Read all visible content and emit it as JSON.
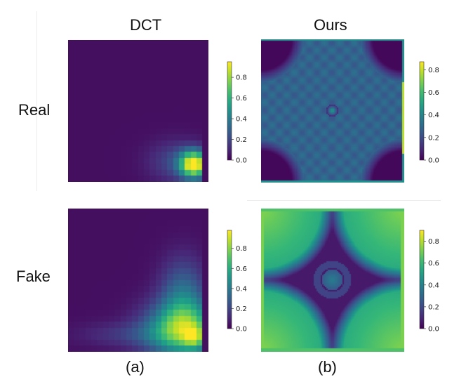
{
  "headers": {
    "left": "DCT",
    "right": "Ours"
  },
  "rows": {
    "top": "Real",
    "bottom": "Fake"
  },
  "captions": {
    "left": "(a)",
    "right": "(b)"
  },
  "chart_data": [
    {
      "type": "heatmap",
      "title": "DCT",
      "row": "Real",
      "caption": "(a)",
      "pattern": "dct-real",
      "cells": 24,
      "colormap": "viridis",
      "colorbar": {
        "ticks": [
          "0.0",
          "0.2",
          "0.4",
          "0.6",
          "0.8"
        ],
        "range": [
          0,
          0.95
        ]
      }
    },
    {
      "type": "heatmap",
      "title": "Ours",
      "row": "Real",
      "caption": "(b)",
      "pattern": "ours-real",
      "cells": 100,
      "colormap": "viridis",
      "colorbar": {
        "ticks": [
          "0.0",
          "0.2",
          "0.4",
          "0.6",
          "0.8"
        ],
        "range": [
          0,
          0.87
        ]
      }
    },
    {
      "type": "heatmap",
      "title": "DCT",
      "row": "Fake",
      "caption": "(a)",
      "pattern": "dct-fake",
      "cells": 24,
      "colormap": "viridis",
      "colorbar": {
        "ticks": [
          "0.0",
          "0.2",
          "0.4",
          "0.6",
          "0.8"
        ],
        "range": [
          0,
          0.98
        ]
      }
    },
    {
      "type": "heatmap",
      "title": "Ours",
      "row": "Fake",
      "caption": "(b)",
      "pattern": "ours-fake",
      "cells": 100,
      "colormap": "viridis",
      "colorbar": {
        "ticks": [
          "0.0",
          "0.2",
          "0.4",
          "0.6",
          "0.8"
        ],
        "range": [
          0,
          0.9
        ]
      }
    }
  ]
}
